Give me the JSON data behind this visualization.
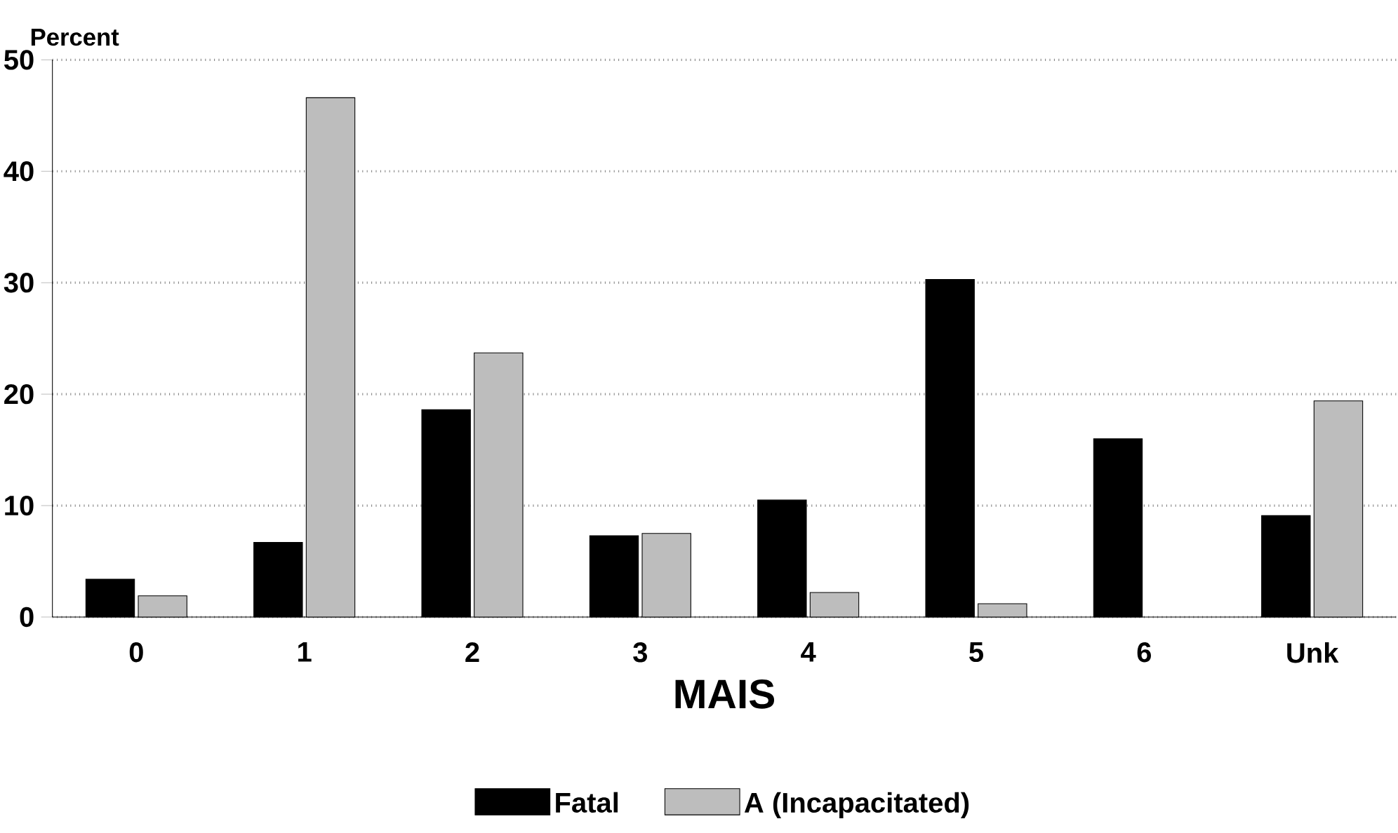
{
  "chart_data": {
    "type": "bar",
    "ylabel": "Percent",
    "xlabel": "MAIS",
    "categories": [
      "0",
      "1",
      "2",
      "3",
      "4",
      "5",
      "6",
      "Unk"
    ],
    "series": [
      {
        "name": "Fatal",
        "color": "#000000",
        "values": [
          3.4,
          6.7,
          18.6,
          7.3,
          10.5,
          30.3,
          16.0,
          9.1
        ]
      },
      {
        "name": "A (Incapacitated)",
        "color": "#bdbdbd",
        "values": [
          1.9,
          46.6,
          23.7,
          7.5,
          2.2,
          1.2,
          null,
          19.4
        ]
      }
    ],
    "ylim": [
      0,
      50
    ],
    "yticks": [
      0,
      10,
      20,
      30,
      40,
      50
    ],
    "grid": "y",
    "legend": "bottom"
  }
}
